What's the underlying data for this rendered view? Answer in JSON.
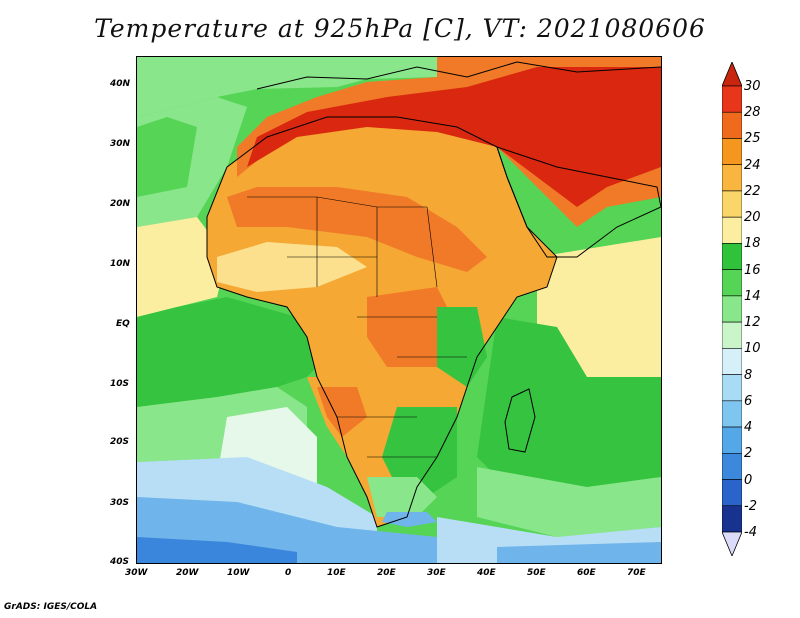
{
  "title": "Temperature at 925hPa [C], VT: 2021080606",
  "credit": "GrADS: IGES/COLA",
  "map": {
    "lat_labels": [
      "40N",
      "30N",
      "20N",
      "10N",
      "EQ",
      "10S",
      "20S",
      "30S",
      "40S"
    ],
    "lon_labels": [
      "30W",
      "20W",
      "10W",
      "0",
      "10E",
      "20E",
      "30E",
      "40E",
      "50E",
      "60E",
      "70E"
    ]
  },
  "colorbar": {
    "labels": [
      "30",
      "28",
      "25",
      "24",
      "22",
      "20",
      "18",
      "16",
      "14",
      "12",
      "10",
      "8",
      "6",
      "4",
      "2",
      "0",
      "-2",
      "-4"
    ],
    "colors": [
      "#e8361a",
      "#f06a1e",
      "#f5961f",
      "#f8b53f",
      "#f9d56a",
      "#fbeea0",
      "#2fc23a",
      "#56d456",
      "#8ae68a",
      "#c9f5c9",
      "#d6f0fa",
      "#a8dcf5",
      "#7ec5f0",
      "#55a8e8",
      "#3b88dc",
      "#2a63c9",
      "#17338f",
      "#0b1a66"
    ],
    "top_arrow_color": "#c8260e",
    "bottom_arrow_color": "#dcdcfa"
  },
  "regions": {
    "sahara": "#d9280f",
    "hot_orange": "#f07a28",
    "warm": "#f5a833",
    "mild": "#fce08e",
    "cool_green": "#35c340",
    "light_green": "#8ae68a",
    "pale": "#e6f8ea",
    "ocean_cool": "#b8def5",
    "ocean_cold": "#6fb4ea",
    "ocean_coldest": "#3a86dc"
  }
}
